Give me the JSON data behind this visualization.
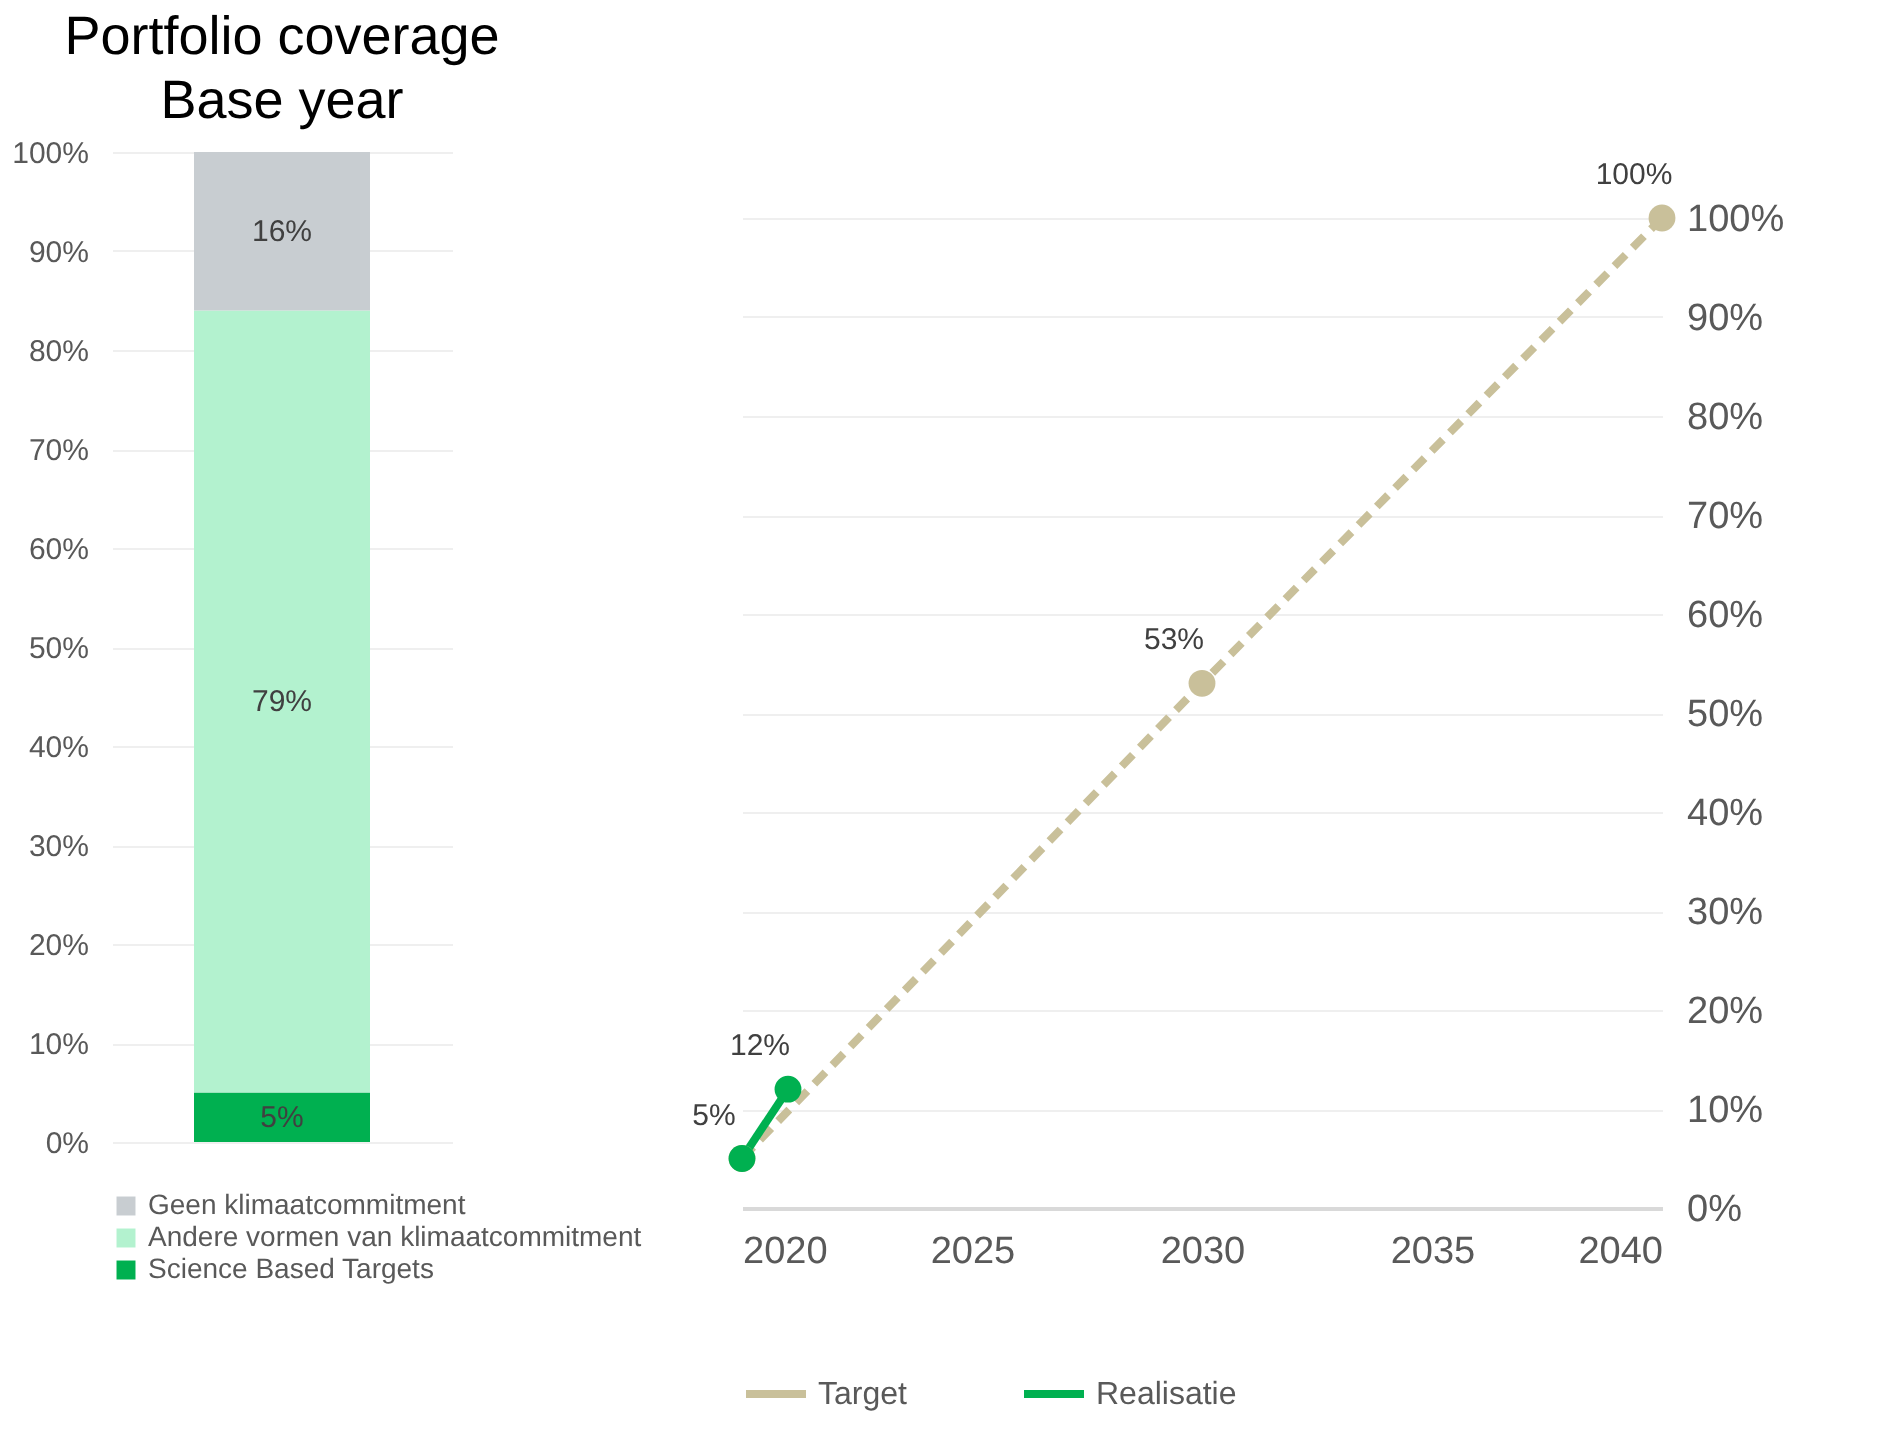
{
  "chart_data": [
    {
      "type": "bar",
      "title": "Portfolio coverage\nBase year",
      "categories": [
        null
      ],
      "stacked": true,
      "series": [
        {
          "name": "Science Based Targets",
          "color": "#00b050",
          "values": [
            5
          ],
          "value_labels": [
            "5%"
          ]
        },
        {
          "name": "Andere vormen van klimaatcommitment",
          "color": "#b3f2cf",
          "values": [
            79
          ],
          "value_labels": [
            "79%"
          ]
        },
        {
          "name": "Geen klimaatcommitment",
          "color": "#c8cdd1",
          "values": [
            16
          ],
          "value_labels": [
            "16%"
          ]
        }
      ],
      "ylim": [
        0,
        100
      ],
      "yticks": [
        {
          "value": 0,
          "label": "0%"
        },
        {
          "value": 10,
          "label": "10%"
        },
        {
          "value": 20,
          "label": "20%"
        },
        {
          "value": 30,
          "label": "30%"
        },
        {
          "value": 40,
          "label": "40%"
        },
        {
          "value": 50,
          "label": "50%"
        },
        {
          "value": 60,
          "label": "60%"
        },
        {
          "value": 70,
          "label": "70%"
        },
        {
          "value": 80,
          "label": "80%"
        },
        {
          "value": 90,
          "label": "90%"
        },
        {
          "value": 100,
          "label": "100%"
        }
      ],
      "grid": "y",
      "legend": "bottom",
      "tick_labels": "y"
    },
    {
      "type": "line",
      "xlim": [
        2020,
        2040
      ],
      "xticks": [
        2020,
        2025,
        2030,
        2035,
        2040
      ],
      "series": [
        {
          "name": "Target",
          "color": "#c9c09a",
          "line_style": "dashed",
          "x": [
            2020,
            2030,
            2040
          ],
          "values": [
            5,
            53,
            100
          ],
          "value_labels": [
            null,
            "53%",
            "100%"
          ]
        },
        {
          "name": "Realisatie",
          "color": "#00b050",
          "line_style": "solid",
          "x": [
            2020,
            2021
          ],
          "values": [
            5,
            12
          ],
          "value_labels": [
            "5%",
            "12%"
          ]
        }
      ],
      "ylim": [
        0,
        100
      ],
      "yticks": [
        {
          "value": 0,
          "label": "0%"
        },
        {
          "value": 10,
          "label": "10%"
        },
        {
          "value": 20,
          "label": "20%"
        },
        {
          "value": 30,
          "label": "30%"
        },
        {
          "value": 40,
          "label": "40%"
        },
        {
          "value": 50,
          "label": "50%"
        },
        {
          "value": 60,
          "label": "60%"
        },
        {
          "value": 70,
          "label": "70%"
        },
        {
          "value": 80,
          "label": "80%"
        },
        {
          "value": 90,
          "label": "90%"
        },
        {
          "value": 100,
          "label": "100%"
        }
      ],
      "grid": "y",
      "legend": "bottom",
      "marker": "circle"
    }
  ]
}
